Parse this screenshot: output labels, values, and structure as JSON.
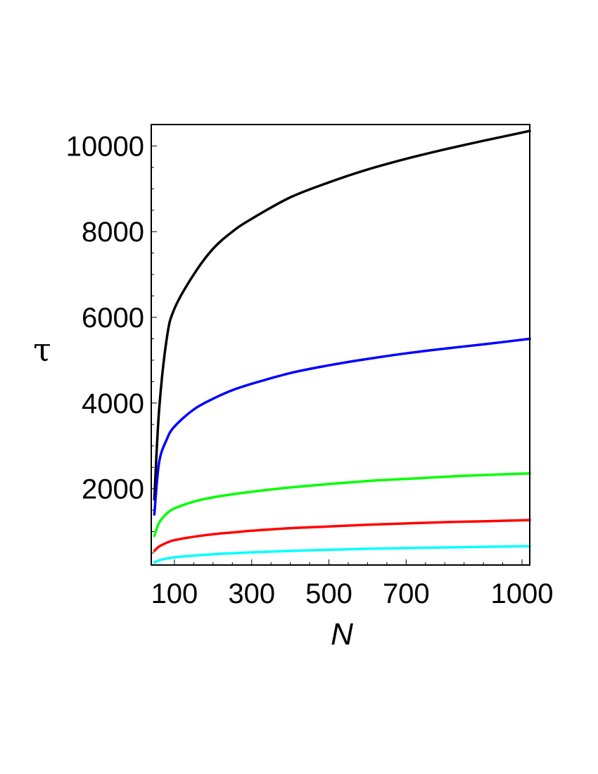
{
  "chart_data": {
    "type": "line",
    "title": "",
    "xlabel": "N",
    "ylabel": "τ",
    "xlim": [
      40,
      1020
    ],
    "ylim": [
      220,
      10500
    ],
    "x_ticks": [
      100,
      300,
      500,
      700,
      1000
    ],
    "x_tick_labels": [
      "100",
      "300",
      "500",
      "700",
      "1000"
    ],
    "y_ticks": [
      2000,
      4000,
      6000,
      8000,
      10000
    ],
    "y_tick_labels": [
      "2000",
      "4000",
      "6000",
      "8000",
      "10000"
    ],
    "grid": false,
    "legend": "none",
    "x": [
      48,
      60,
      80,
      100,
      150,
      200,
      250,
      300,
      400,
      500,
      600,
      700,
      800,
      900,
      1020
    ],
    "series": [
      {
        "color": "#000000",
        "values": [
          1750,
          3800,
          5500,
          6200,
          7000,
          7600,
          8000,
          8300,
          8800,
          9150,
          9450,
          9700,
          9920,
          10120,
          10350
        ]
      },
      {
        "color": "#0000ff",
        "values": [
          1400,
          2600,
          3150,
          3450,
          3850,
          4100,
          4300,
          4450,
          4700,
          4880,
          5030,
          5160,
          5270,
          5370,
          5500
        ]
      },
      {
        "color": "#00ff00",
        "values": [
          900,
          1200,
          1420,
          1540,
          1700,
          1800,
          1870,
          1930,
          2030,
          2110,
          2180,
          2230,
          2280,
          2320,
          2360
        ]
      },
      {
        "color": "#ff0000",
        "values": [
          550,
          650,
          740,
          800,
          880,
          940,
          980,
          1020,
          1080,
          1120,
          1160,
          1190,
          1220,
          1240,
          1270
        ]
      },
      {
        "color": "#00ffff",
        "values": [
          280,
          330,
          370,
          400,
          440,
          470,
          495,
          515,
          550,
          575,
          600,
          615,
          630,
          645,
          660
        ]
      }
    ]
  }
}
